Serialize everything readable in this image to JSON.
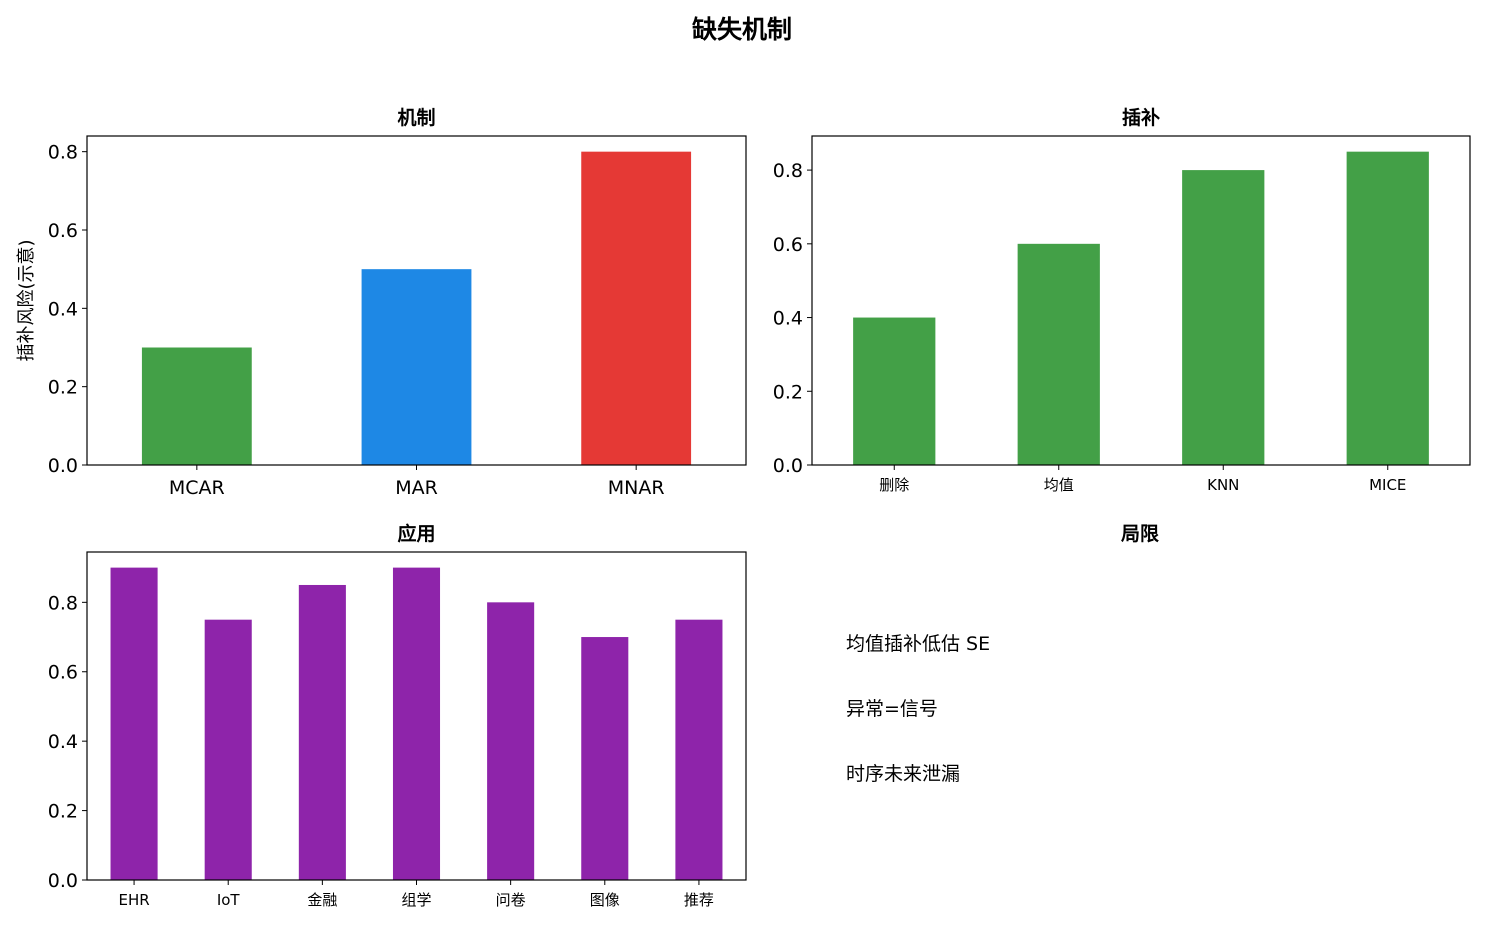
{
  "figure_title": "缺失机制",
  "colors": {
    "green": "#43a047",
    "blue": "#1e88e5",
    "red": "#e53935",
    "purple": "#8e24aa"
  },
  "chart_data": [
    {
      "type": "bar",
      "title": "机制",
      "ylabel": "插补风险(示意)",
      "xlabel": "",
      "categories": [
        "MCAR",
        "MAR",
        "MNAR"
      ],
      "values": [
        0.3,
        0.5,
        0.8
      ],
      "bar_colors": [
        "#43a047",
        "#1e88e5",
        "#e53935"
      ],
      "ylim": [
        0,
        0.84
      ],
      "yticks": [
        "0.0",
        "0.2",
        "0.4",
        "0.6",
        "0.8"
      ],
      "grid": false
    },
    {
      "type": "bar",
      "title": "插补",
      "xlabel": "",
      "ylabel": "",
      "categories": [
        "删除",
        "均值",
        "KNN",
        "MICE"
      ],
      "values": [
        0.4,
        0.6,
        0.8,
        0.85
      ],
      "bar_colors": [
        "#43a047",
        "#43a047",
        "#43a047",
        "#43a047"
      ],
      "ylim": [
        0,
        0.8925
      ],
      "yticks": [
        "0.0",
        "0.2",
        "0.4",
        "0.6",
        "0.8"
      ],
      "grid": false
    },
    {
      "type": "bar",
      "title": "应用",
      "xlabel": "",
      "ylabel": "",
      "categories": [
        "EHR",
        "IoT",
        "金融",
        "组学",
        "问卷",
        "图像",
        "推荐"
      ],
      "values": [
        0.9,
        0.75,
        0.85,
        0.9,
        0.8,
        0.7,
        0.75
      ],
      "bar_colors": [
        "#8e24aa",
        "#8e24aa",
        "#8e24aa",
        "#8e24aa",
        "#8e24aa",
        "#8e24aa",
        "#8e24aa"
      ],
      "ylim": [
        0,
        0.945
      ],
      "yticks": [
        "0.0",
        "0.2",
        "0.4",
        "0.6",
        "0.8"
      ],
      "grid": false
    }
  ],
  "notes_panel": {
    "title": "局限",
    "lines": [
      "均值插补低估 SE",
      "异常=信号",
      "时序未来泄漏"
    ]
  }
}
